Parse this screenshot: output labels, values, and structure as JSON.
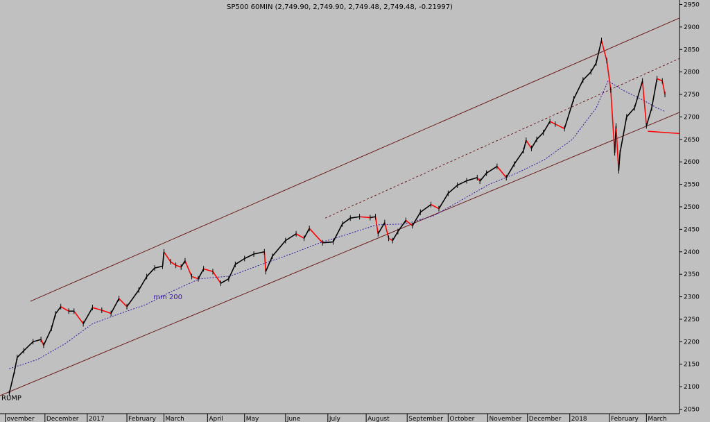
{
  "chart_data": {
    "type": "line",
    "title": "SP500 60MIN (2,749.90, 2,749.90, 2,749.48, 2,749.48, -0.21997)",
    "y_axis": {
      "side": "right",
      "ticks": [
        2050,
        2100,
        2150,
        2200,
        2250,
        2300,
        2350,
        2400,
        2450,
        2500,
        2550,
        2600,
        2650,
        2700,
        2750,
        2800,
        2850,
        2900,
        2950
      ],
      "range": [
        2040,
        2960
      ]
    },
    "x_axis": {
      "type": "date",
      "range": [
        "2016-10-28",
        "2018-03-26"
      ],
      "ticks": [
        {
          "label": "ovember",
          "date": "2016-11-01"
        },
        {
          "label": "December",
          "date": "2016-12-01"
        },
        {
          "label": "2017",
          "date": "2017-01-02"
        },
        {
          "label": "February",
          "date": "2017-02-01"
        },
        {
          "label": "March",
          "date": "2017-03-01"
        },
        {
          "label": "April",
          "date": "2017-04-03"
        },
        {
          "label": "May",
          "date": "2017-05-01"
        },
        {
          "label": "June",
          "date": "2017-06-01"
        },
        {
          "label": "July",
          "date": "2017-07-03"
        },
        {
          "label": "August",
          "date": "2017-08-01"
        },
        {
          "label": "September",
          "date": "2017-09-01"
        },
        {
          "label": "October",
          "date": "2017-10-02"
        },
        {
          "label": "November",
          "date": "2017-11-01"
        },
        {
          "label": "December",
          "date": "2017-12-01"
        },
        {
          "label": "2018",
          "date": "2018-01-02"
        },
        {
          "label": "February",
          "date": "2018-02-01"
        },
        {
          "label": "March",
          "date": "2018-03-01"
        }
      ]
    },
    "series": [
      {
        "style": "price-bars",
        "color": "#000000",
        "down_color": "#ff0000",
        "points": [
          [
            "2016-11-04",
            2085
          ],
          [
            "2016-11-08",
            2135
          ],
          [
            "2016-11-10",
            2165
          ],
          [
            "2016-11-15",
            2180
          ],
          [
            "2016-11-22",
            2200
          ],
          [
            "2016-11-28",
            2205
          ],
          [
            "2016-11-30",
            2192
          ],
          [
            "2016-12-06",
            2230
          ],
          [
            "2016-12-09",
            2262
          ],
          [
            "2016-12-13",
            2278
          ],
          [
            "2016-12-19",
            2268
          ],
          [
            "2016-12-23",
            2268
          ],
          [
            "2016-12-30",
            2240
          ],
          [
            "2017-01-06",
            2276
          ],
          [
            "2017-01-13",
            2270
          ],
          [
            "2017-01-20",
            2263
          ],
          [
            "2017-01-26",
            2296
          ],
          [
            "2017-02-01",
            2278
          ],
          [
            "2017-02-10",
            2315
          ],
          [
            "2017-02-16",
            2345
          ],
          [
            "2017-02-22",
            2364
          ],
          [
            "2017-02-28",
            2368
          ],
          [
            "2017-03-01",
            2400
          ],
          [
            "2017-03-06",
            2378
          ],
          [
            "2017-03-10",
            2370
          ],
          [
            "2017-03-14",
            2366
          ],
          [
            "2017-03-17",
            2380
          ],
          [
            "2017-03-22",
            2345
          ],
          [
            "2017-03-27",
            2340
          ],
          [
            "2017-03-31",
            2362
          ],
          [
            "2017-04-07",
            2356
          ],
          [
            "2017-04-13",
            2330
          ],
          [
            "2017-04-19",
            2340
          ],
          [
            "2017-04-24",
            2372
          ],
          [
            "2017-05-01",
            2385
          ],
          [
            "2017-05-08",
            2395
          ],
          [
            "2017-05-16",
            2400
          ],
          [
            "2017-05-17",
            2356
          ],
          [
            "2017-05-22",
            2390
          ],
          [
            "2017-06-01",
            2425
          ],
          [
            "2017-06-09",
            2440
          ],
          [
            "2017-06-15",
            2430
          ],
          [
            "2017-06-19",
            2452
          ],
          [
            "2017-06-29",
            2420
          ],
          [
            "2017-07-07",
            2422
          ],
          [
            "2017-07-14",
            2462
          ],
          [
            "2017-07-20",
            2475
          ],
          [
            "2017-07-27",
            2478
          ],
          [
            "2017-08-04",
            2476
          ],
          [
            "2017-08-08",
            2478
          ],
          [
            "2017-08-10",
            2440
          ],
          [
            "2017-08-15",
            2465
          ],
          [
            "2017-08-18",
            2430
          ],
          [
            "2017-08-21",
            2425
          ],
          [
            "2017-08-25",
            2445
          ],
          [
            "2017-08-31",
            2470
          ],
          [
            "2017-09-05",
            2458
          ],
          [
            "2017-09-11",
            2488
          ],
          [
            "2017-09-19",
            2505
          ],
          [
            "2017-09-25",
            2496
          ],
          [
            "2017-10-02",
            2530
          ],
          [
            "2017-10-09",
            2548
          ],
          [
            "2017-10-16",
            2558
          ],
          [
            "2017-10-24",
            2565
          ],
          [
            "2017-10-26",
            2557
          ],
          [
            "2017-10-31",
            2575
          ],
          [
            "2017-11-08",
            2590
          ],
          [
            "2017-11-15",
            2565
          ],
          [
            "2017-11-21",
            2595
          ],
          [
            "2017-11-28",
            2625
          ],
          [
            "2017-11-30",
            2648
          ],
          [
            "2017-12-04",
            2630
          ],
          [
            "2017-12-08",
            2650
          ],
          [
            "2017-12-13",
            2665
          ],
          [
            "2017-12-18",
            2690
          ],
          [
            "2017-12-22",
            2684
          ],
          [
            "2017-12-29",
            2674
          ],
          [
            "2018-01-05",
            2740
          ],
          [
            "2018-01-12",
            2782
          ],
          [
            "2018-01-18",
            2800
          ],
          [
            "2018-01-22",
            2820
          ],
          [
            "2018-01-26",
            2870
          ],
          [
            "2018-01-30",
            2825
          ],
          [
            "2018-02-02",
            2760
          ],
          [
            "2018-02-05",
            2620
          ],
          [
            "2018-02-06",
            2680
          ],
          [
            "2018-02-08",
            2580
          ],
          [
            "2018-02-09",
            2620
          ],
          [
            "2018-02-14",
            2700
          ],
          [
            "2018-02-20",
            2720
          ],
          [
            "2018-02-26",
            2780
          ],
          [
            "2018-03-01",
            2680
          ],
          [
            "2018-03-05",
            2720
          ],
          [
            "2018-03-09",
            2785
          ],
          [
            "2018-03-13",
            2780
          ],
          [
            "2018-03-15",
            2750
          ]
        ]
      },
      {
        "name": "mm 200",
        "style": "dotted",
        "color": "#3a16a6",
        "points": [
          [
            "2016-11-04",
            2140
          ],
          [
            "2016-11-25",
            2160
          ],
          [
            "2016-12-16",
            2195
          ],
          [
            "2017-01-06",
            2240
          ],
          [
            "2017-01-26",
            2262
          ],
          [
            "2017-02-15",
            2282
          ],
          [
            "2017-03-07",
            2312
          ],
          [
            "2017-03-28",
            2340
          ],
          [
            "2017-04-20",
            2346
          ],
          [
            "2017-05-12",
            2370
          ],
          [
            "2017-06-05",
            2395
          ],
          [
            "2017-06-27",
            2420
          ],
          [
            "2017-07-19",
            2440
          ],
          [
            "2017-08-09",
            2460
          ],
          [
            "2017-08-31",
            2462
          ],
          [
            "2017-09-21",
            2480
          ],
          [
            "2017-10-12",
            2515
          ],
          [
            "2017-11-02",
            2550
          ],
          [
            "2017-11-23",
            2575
          ],
          [
            "2017-12-14",
            2605
          ],
          [
            "2018-01-04",
            2650
          ],
          [
            "2018-01-22",
            2720
          ],
          [
            "2018-01-31",
            2780
          ],
          [
            "2018-02-12",
            2758
          ],
          [
            "2018-02-26",
            2738
          ],
          [
            "2018-03-09",
            2720
          ],
          [
            "2018-03-15",
            2712
          ]
        ]
      }
    ],
    "trend_lines": [
      {
        "style": "solid",
        "color": "#6a1a1a",
        "from": [
          "2016-11-20",
          2290
        ],
        "to": [
          "2018-03-26",
          2920
        ]
      },
      {
        "style": "solid",
        "color": "#6a1a1a",
        "from": [
          "2016-10-28",
          2080
        ],
        "to": [
          "2018-03-26",
          2710
        ]
      },
      {
        "style": "dashed",
        "color": "#6a1a1a",
        "from": [
          "2017-07-01",
          2475
        ],
        "to": [
          "2018-03-26",
          2830
        ]
      },
      {
        "style": "solid",
        "color": "#ff0000",
        "from": [
          "2018-03-02",
          2668
        ],
        "to": [
          "2018-03-26",
          2663
        ]
      }
    ],
    "annotations": [
      {
        "text": "mm 200",
        "color": "#3a16a6",
        "at": [
          "2017-02-20",
          2295
        ]
      },
      {
        "text": "RUMP",
        "color": "#000000",
        "at": [
          "2016-10-28",
          2070
        ]
      }
    ]
  }
}
